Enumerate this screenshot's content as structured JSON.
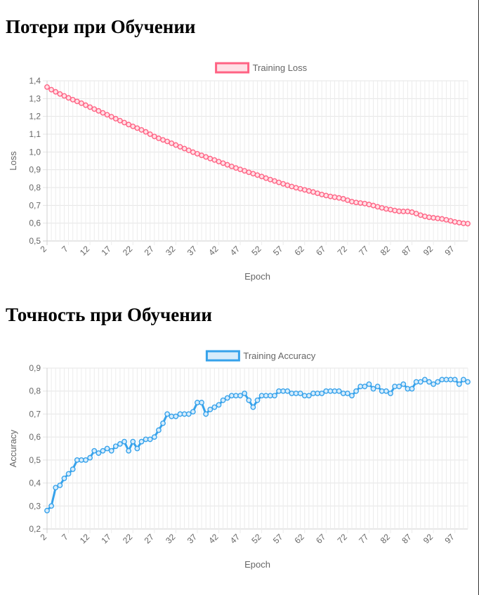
{
  "page": {
    "loss_title": "Потери при Обучении",
    "accuracy_title": "Точность при Обучении"
  },
  "chart_data": [
    {
      "type": "line",
      "title": "",
      "xlabel": "Epoch",
      "ylabel": "Loss",
      "ylim": [
        0.5,
        1.4
      ],
      "y_ticks": [
        "0,5",
        "0,6",
        "0,7",
        "0,8",
        "0,9",
        "1,0",
        "1,1",
        "1,2",
        "1,3",
        "1,4"
      ],
      "x_start": 2,
      "x_tick_labels": [
        "2",
        "7",
        "12",
        "17",
        "22",
        "27",
        "32",
        "37",
        "42",
        "47",
        "52",
        "57",
        "62",
        "67",
        "72",
        "77",
        "82",
        "87",
        "92",
        "97"
      ],
      "grid": true,
      "legend": "top-center",
      "series": [
        {
          "name": "Training Loss",
          "color": "#ff6384",
          "fill": "#ffe0e6",
          "values": [
            1.365,
            1.35,
            1.338,
            1.326,
            1.315,
            1.304,
            1.294,
            1.284,
            1.274,
            1.263,
            1.252,
            1.241,
            1.231,
            1.22,
            1.209,
            1.198,
            1.187,
            1.176,
            1.165,
            1.154,
            1.144,
            1.134,
            1.124,
            1.113,
            1.1,
            1.087,
            1.077,
            1.068,
            1.059,
            1.049,
            1.039,
            1.029,
            1.019,
            1.009,
            0.999,
            0.99,
            0.981,
            0.972,
            0.963,
            0.955,
            0.946,
            0.937,
            0.928,
            0.919,
            0.91,
            0.902,
            0.894,
            0.886,
            0.878,
            0.87,
            0.862,
            0.853,
            0.845,
            0.837,
            0.829,
            0.821,
            0.813,
            0.806,
            0.799,
            0.793,
            0.787,
            0.781,
            0.775,
            0.768,
            0.761,
            0.755,
            0.75,
            0.746,
            0.742,
            0.737,
            0.729,
            0.721,
            0.716,
            0.713,
            0.71,
            0.705,
            0.699,
            0.692,
            0.686,
            0.68,
            0.676,
            0.671,
            0.667,
            0.666,
            0.666,
            0.662,
            0.654,
            0.645,
            0.638,
            0.633,
            0.63,
            0.627,
            0.624,
            0.619,
            0.613,
            0.607,
            0.603,
            0.599,
            0.597
          ]
        }
      ]
    },
    {
      "type": "line",
      "title": "",
      "xlabel": "Epoch",
      "ylabel": "Accuracy",
      "ylim": [
        0.2,
        0.9
      ],
      "y_ticks": [
        "0,2",
        "0,3",
        "0,4",
        "0,5",
        "0,6",
        "0,7",
        "0,8",
        "0,9"
      ],
      "x_start": 2,
      "x_tick_labels": [
        "2",
        "7",
        "12",
        "17",
        "22",
        "27",
        "32",
        "37",
        "42",
        "47",
        "52",
        "57",
        "62",
        "67",
        "72",
        "77",
        "82",
        "87",
        "92",
        "97"
      ],
      "grid": true,
      "legend": "top-center",
      "series": [
        {
          "name": "Training Accuracy",
          "color": "#36a2eb",
          "fill": "#d7ecfb",
          "values": [
            0.28,
            0.3,
            0.38,
            0.39,
            0.42,
            0.44,
            0.46,
            0.5,
            0.5,
            0.5,
            0.51,
            0.54,
            0.53,
            0.54,
            0.55,
            0.54,
            0.56,
            0.57,
            0.58,
            0.54,
            0.58,
            0.55,
            0.58,
            0.59,
            0.59,
            0.6,
            0.63,
            0.66,
            0.7,
            0.69,
            0.69,
            0.7,
            0.7,
            0.7,
            0.71,
            0.75,
            0.75,
            0.7,
            0.72,
            0.73,
            0.74,
            0.76,
            0.77,
            0.78,
            0.78,
            0.78,
            0.79,
            0.76,
            0.73,
            0.76,
            0.78,
            0.78,
            0.78,
            0.78,
            0.8,
            0.8,
            0.8,
            0.79,
            0.79,
            0.79,
            0.78,
            0.78,
            0.79,
            0.79,
            0.79,
            0.8,
            0.8,
            0.8,
            0.8,
            0.79,
            0.79,
            0.78,
            0.8,
            0.82,
            0.82,
            0.83,
            0.81,
            0.82,
            0.8,
            0.8,
            0.79,
            0.82,
            0.82,
            0.83,
            0.81,
            0.81,
            0.84,
            0.84,
            0.85,
            0.84,
            0.83,
            0.84,
            0.85,
            0.85,
            0.85,
            0.85,
            0.83,
            0.85,
            0.84
          ]
        }
      ]
    }
  ]
}
